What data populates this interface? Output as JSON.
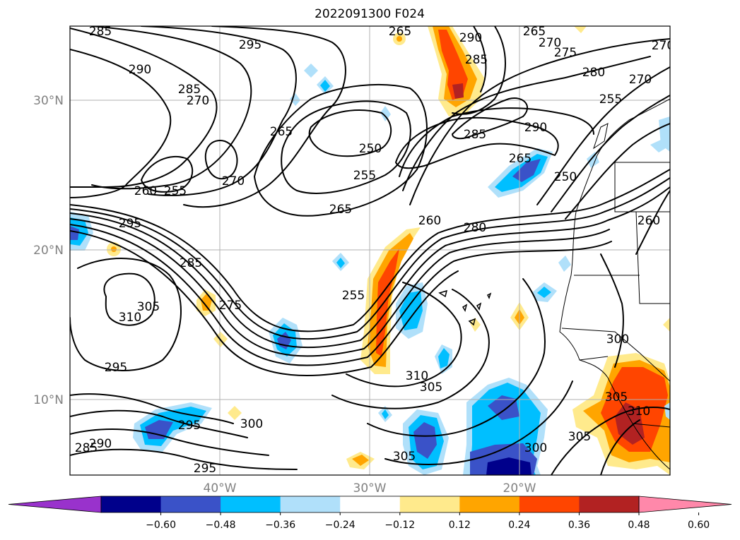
{
  "title": "2022091300 F024",
  "map": {
    "lat_labels": [
      "30°N",
      "20°N",
      "10°N"
    ],
    "lon_labels": [
      "40°W",
      "30°W",
      "20°W"
    ],
    "contour_labels": [
      "285",
      "295",
      "290",
      "285",
      "270",
      "265",
      "265",
      "290",
      "285",
      "265",
      "270",
      "275",
      "280",
      "270",
      "255",
      "250",
      "285",
      "290",
      "270",
      "260",
      "255",
      "265",
      "255",
      "265",
      "260",
      "280",
      "250",
      "260",
      "295",
      "285",
      "305",
      "310",
      "275",
      "255",
      "310",
      "305",
      "295",
      "295",
      "300",
      "290",
      "285",
      "295",
      "305",
      "300",
      "305",
      "300",
      "305",
      "310",
      "270"
    ]
  },
  "colorbar": {
    "ticks": [
      "−0.60",
      "−0.48",
      "−0.36",
      "−0.24",
      "−0.12",
      "0.12",
      "0.24",
      "0.36",
      "0.48",
      "0.60"
    ],
    "colors": [
      "#9932cc",
      "#00008b",
      "#3a52c8",
      "#00bfff",
      "#b0e0fa",
      "#ffffff",
      "#ffea8c",
      "#ffa500",
      "#ff4500",
      "#b22222",
      "#ff88aa"
    ]
  }
}
